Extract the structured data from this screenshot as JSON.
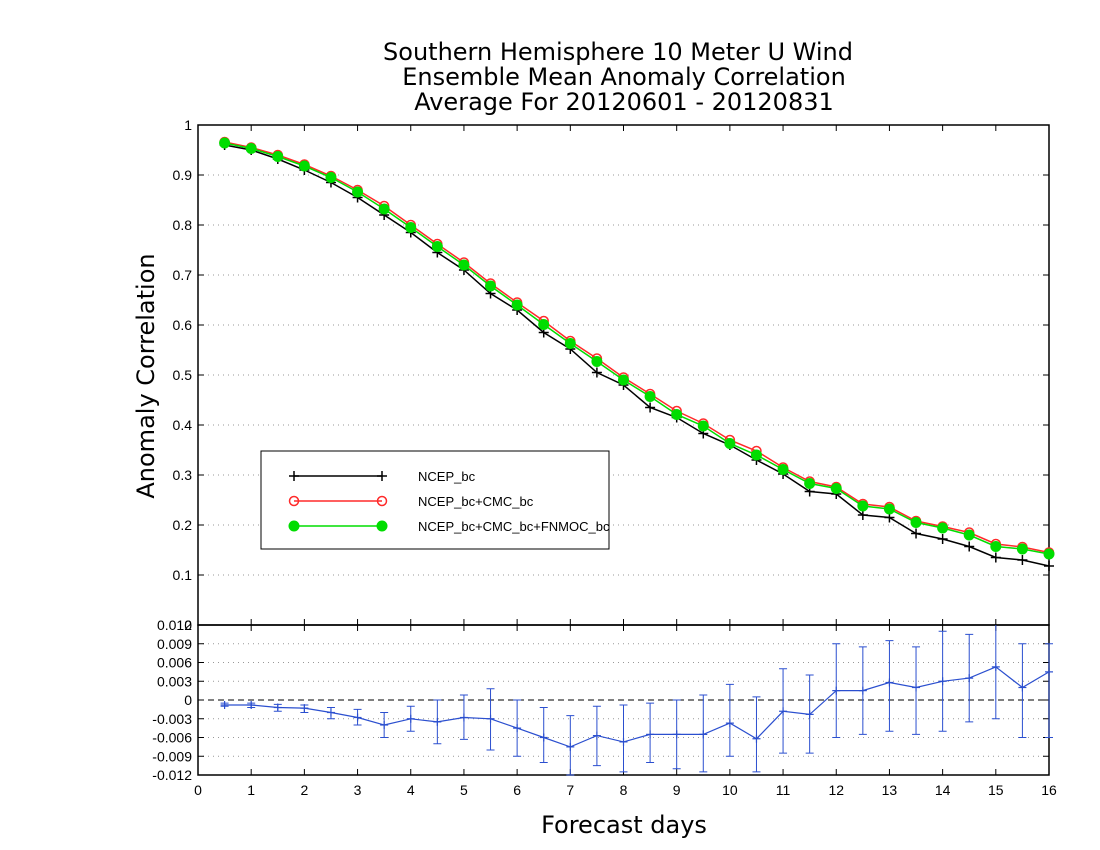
{
  "chart_data": [
    {
      "type": "line",
      "title": [
        "Southern Hemisphere 10 Meter U Wind",
        "Ensemble Mean Anomaly Correlation",
        "Average For 20120601 - 20120831"
      ],
      "ylabel": "Anomaly Correlation",
      "xlim": [
        0,
        16
      ],
      "ylim": [
        0,
        1
      ],
      "yticks": [
        "0.1",
        "0.2",
        "0.3",
        "0.4",
        "0.5",
        "0.6",
        "0.7",
        "0.8",
        "0.9",
        "1"
      ],
      "grid": "horizontal dotted",
      "legend_position": "center-left",
      "x": [
        0.5,
        1,
        1.5,
        2,
        2.5,
        3,
        3.5,
        4,
        4.5,
        5,
        5.5,
        6,
        6.5,
        7,
        7.5,
        8,
        8.5,
        9,
        9.5,
        10,
        10.5,
        11,
        11.5,
        12,
        12.5,
        13,
        13.5,
        14,
        14.5,
        15,
        15.5,
        16
      ],
      "series": [
        {
          "name": "NCEP_bc",
          "color": "#000000",
          "marker": "plus",
          "values": [
            0.96,
            0.95,
            0.932,
            0.91,
            0.885,
            0.855,
            0.82,
            0.785,
            0.745,
            0.71,
            0.663,
            0.63,
            0.585,
            0.552,
            0.505,
            0.48,
            0.435,
            0.415,
            0.383,
            0.36,
            0.33,
            0.302,
            0.267,
            0.262,
            0.22,
            0.215,
            0.183,
            0.172,
            0.157,
            0.135,
            0.13,
            0.118
          ]
        },
        {
          "name": "NCEP_bc+CMC_bc",
          "color": "#ff2a2a",
          "marker": "open-circle",
          "values": [
            0.966,
            0.955,
            0.94,
            0.921,
            0.898,
            0.87,
            0.838,
            0.8,
            0.762,
            0.725,
            0.683,
            0.645,
            0.608,
            0.568,
            0.533,
            0.495,
            0.462,
            0.428,
            0.403,
            0.37,
            0.348,
            0.315,
            0.287,
            0.276,
            0.242,
            0.236,
            0.208,
            0.197,
            0.185,
            0.162,
            0.156,
            0.145
          ]
        },
        {
          "name": "NCEP_bc+CMC_bc+FNMOC_bc",
          "color": "#00dd00",
          "marker": "filled-circle",
          "values": [
            0.964,
            0.953,
            0.937,
            0.918,
            0.895,
            0.866,
            0.832,
            0.795,
            0.757,
            0.72,
            0.678,
            0.64,
            0.601,
            0.563,
            0.527,
            0.49,
            0.457,
            0.421,
            0.398,
            0.363,
            0.34,
            0.311,
            0.283,
            0.273,
            0.238,
            0.232,
            0.205,
            0.194,
            0.18,
            0.157,
            0.152,
            0.142
          ]
        }
      ]
    },
    {
      "type": "line",
      "xlabel": "Forecast days",
      "xlim": [
        0,
        16
      ],
      "ylim": [
        -0.012,
        0.012
      ],
      "xticks": [
        "0",
        "1",
        "2",
        "3",
        "4",
        "5",
        "6",
        "7",
        "8",
        "9",
        "10",
        "11",
        "12",
        "13",
        "14",
        "15",
        "16"
      ],
      "yticks": [
        "-0.012",
        "-0.009",
        "-0.006",
        "-0.003",
        "0",
        "0.003",
        "0.006",
        "0.009",
        "0.012"
      ],
      "top_label": "0",
      "grid": "horizontal dotted, dashed zero line",
      "series": [
        {
          "color": "#2b4fcf",
          "marker": "plus",
          "values": [
            -0.0008,
            -0.0008,
            -0.0012,
            -0.0013,
            -0.002,
            -0.0028,
            -0.004,
            -0.003,
            -0.0035,
            -0.0028,
            -0.003,
            -0.0045,
            -0.006,
            -0.0075,
            -0.0057,
            -0.0067,
            -0.0055,
            -0.0055,
            -0.0055,
            -0.0037,
            -0.0062,
            -0.0018,
            -0.0023,
            0.0015,
            0.0015,
            0.0028,
            0.002,
            0.003,
            0.0035,
            0.0053,
            0.002,
            0.0045
          ],
          "error_low": [
            -0.001,
            -0.0012,
            -0.0018,
            -0.002,
            -0.003,
            -0.004,
            -0.006,
            -0.005,
            -0.007,
            -0.0063,
            -0.008,
            -0.009,
            -0.01,
            -0.012,
            -0.0105,
            -0.0115,
            -0.01,
            -0.011,
            -0.0115,
            -0.009,
            -0.0115,
            -0.0085,
            -0.0085,
            -0.006,
            -0.0055,
            -0.005,
            -0.0055,
            -0.005,
            -0.0035,
            -0.003,
            -0.006,
            -0.006
          ],
          "error_high": [
            -0.0005,
            -0.0005,
            -0.0007,
            -0.0008,
            -0.0012,
            -0.0015,
            -0.002,
            -0.001,
            0.0,
            0.0008,
            0.0018,
            0.0,
            -0.0012,
            -0.0025,
            -0.001,
            -0.0008,
            -0.0005,
            0.0,
            0.0008,
            0.0025,
            0.0005,
            0.005,
            0.004,
            0.009,
            0.0085,
            0.0095,
            0.0085,
            0.011,
            0.0105,
            0.0135,
            0.009,
            0.009
          ]
        }
      ]
    }
  ]
}
